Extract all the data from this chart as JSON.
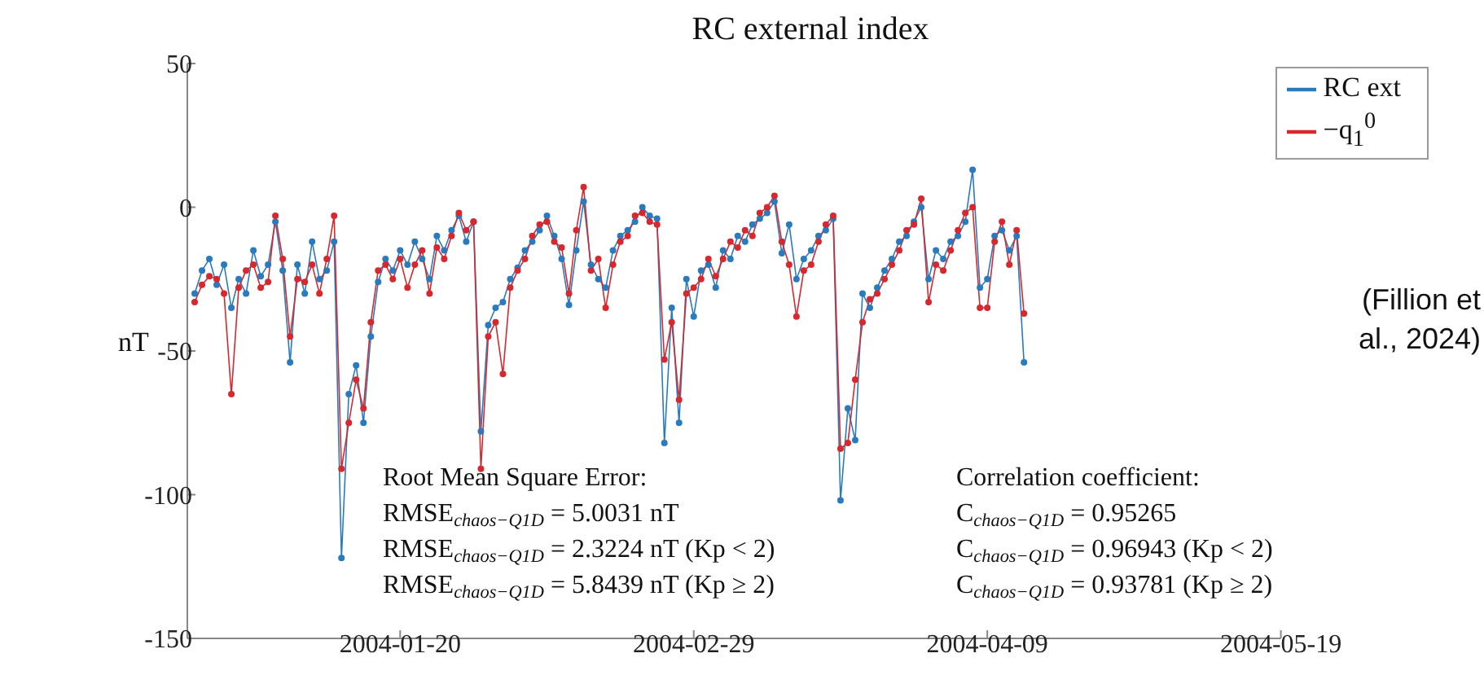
{
  "chart_data": {
    "type": "line",
    "title": "RC external index",
    "ylabel": "nT",
    "x": [
      "2003-12-23",
      "2003-12-24",
      "2003-12-25",
      "2003-12-26",
      "2003-12-27",
      "2003-12-28",
      "2003-12-29",
      "2003-12-30",
      "2003-12-31",
      "2004-01-01",
      "2004-01-02",
      "2004-01-03",
      "2004-01-04",
      "2004-01-05",
      "2004-01-06",
      "2004-01-07",
      "2004-01-08",
      "2004-01-09",
      "2004-01-10",
      "2004-01-11",
      "2004-01-12",
      "2004-01-13",
      "2004-01-14",
      "2004-01-15",
      "2004-01-16",
      "2004-01-17",
      "2004-01-18",
      "2004-01-19",
      "2004-01-20",
      "2004-01-21",
      "2004-01-22",
      "2004-01-23",
      "2004-01-24",
      "2004-01-25",
      "2004-01-26",
      "2004-01-27",
      "2004-01-28",
      "2004-01-29",
      "2004-01-30",
      "2004-01-31",
      "2004-02-01",
      "2004-02-02",
      "2004-02-03",
      "2004-02-04",
      "2004-02-05",
      "2004-02-06",
      "2004-02-07",
      "2004-02-08",
      "2004-02-09",
      "2004-02-10",
      "2004-02-11",
      "2004-02-12",
      "2004-02-13",
      "2004-02-14",
      "2004-02-15",
      "2004-02-16",
      "2004-02-17",
      "2004-02-18",
      "2004-02-19",
      "2004-02-20",
      "2004-02-21",
      "2004-02-22",
      "2004-02-23",
      "2004-02-24",
      "2004-02-25",
      "2004-02-26",
      "2004-02-27",
      "2004-02-28",
      "2004-02-29",
      "2004-03-01",
      "2004-03-02",
      "2004-03-03",
      "2004-03-04",
      "2004-03-05",
      "2004-03-06",
      "2004-03-07",
      "2004-03-08",
      "2004-03-09",
      "2004-03-10",
      "2004-03-11",
      "2004-03-12",
      "2004-03-13",
      "2004-03-14",
      "2004-03-15",
      "2004-03-16",
      "2004-03-17",
      "2004-03-18",
      "2004-03-19",
      "2004-03-20",
      "2004-03-21",
      "2004-03-22",
      "2004-03-23",
      "2004-03-24",
      "2004-03-25",
      "2004-03-26",
      "2004-03-27",
      "2004-03-28",
      "2004-03-29",
      "2004-03-30",
      "2004-03-31",
      "2004-04-01",
      "2004-04-02",
      "2004-04-03",
      "2004-04-04",
      "2004-04-05",
      "2004-04-06",
      "2004-04-07",
      "2004-04-08",
      "2004-04-09",
      "2004-04-10",
      "2004-04-11",
      "2004-04-12",
      "2004-04-13",
      "2004-04-14"
    ],
    "series": [
      {
        "name": "RC ext",
        "color": "#2a7bbd",
        "values": [
          -30,
          -22,
          -18,
          -27,
          -20,
          -35,
          -25,
          -30,
          -15,
          -24,
          -20,
          -5,
          -22,
          -54,
          -20,
          -30,
          -12,
          -25,
          -22,
          -12,
          -122,
          -65,
          -55,
          -75,
          -45,
          -26,
          -18,
          -22,
          -15,
          -20,
          -12,
          -18,
          -25,
          -10,
          -15,
          -8,
          -3,
          -12,
          -5,
          -78,
          -41,
          -35,
          -33,
          -25,
          -21,
          -15,
          -12,
          -8,
          -3,
          -10,
          -18,
          -34,
          -15,
          2,
          -20,
          -25,
          -28,
          -15,
          -10,
          -8,
          -5,
          0,
          -3,
          -4,
          -82,
          -35,
          -75,
          -25,
          -38,
          -22,
          -20,
          -28,
          -15,
          -18,
          -10,
          -12,
          -6,
          -4,
          -2,
          2,
          -16,
          -6,
          -25,
          -18,
          -15,
          -10,
          -8,
          -4,
          -102,
          -70,
          -81,
          -30,
          -35,
          -28,
          -22,
          -18,
          -12,
          -10,
          -5,
          0,
          -25,
          -15,
          -18,
          -12,
          -10,
          -5,
          13,
          -28,
          -25,
          -10,
          -8,
          -15,
          -10,
          -54
        ]
      },
      {
        "name": "−q$_{1}$$^{0}$",
        "color": "#d6282e",
        "values": [
          -33,
          -27,
          -24,
          -25,
          -30,
          -65,
          -28,
          -22,
          -20,
          -28,
          -26,
          -3,
          -18,
          -45,
          -25,
          -26,
          -20,
          -30,
          -18,
          -3,
          -91,
          -75,
          -60,
          -70,
          -40,
          -22,
          -20,
          -25,
          -18,
          -28,
          -20,
          -15,
          -30,
          -14,
          -18,
          -10,
          -2,
          -8,
          -5,
          -91,
          -45,
          -40,
          -58,
          -28,
          -22,
          -18,
          -10,
          -6,
          -5,
          -12,
          -14,
          -30,
          -8,
          7,
          -22,
          -18,
          -35,
          -20,
          -12,
          -10,
          -3,
          -2,
          -5,
          -6,
          -53,
          -40,
          -67,
          -30,
          -28,
          -25,
          -18,
          -24,
          -18,
          -12,
          -14,
          -8,
          -10,
          -2,
          0,
          4,
          -12,
          -20,
          -38,
          -22,
          -20,
          -12,
          -6,
          -3,
          -84,
          -82,
          -60,
          -40,
          -32,
          -30,
          -25,
          -20,
          -15,
          -8,
          -6,
          3,
          -33,
          -20,
          -22,
          -15,
          -8,
          -2,
          0,
          -35,
          -35,
          -12,
          -5,
          -20,
          -8,
          -37
        ]
      }
    ],
    "xlim": [
      "2003-12-22",
      "2004-05-19"
    ],
    "xticks": [
      "2004-01-20",
      "2004-02-29",
      "2004-04-09",
      "2004-05-19"
    ],
    "ylim": [
      -150,
      50
    ],
    "yticks": [
      -150,
      -100,
      -50,
      0,
      50
    ],
    "marker": "circle",
    "legend": "top right",
    "annotations": [
      "Root Mean Square Error:",
      "RMSE$_{chaos−Q1D}$ = 5.0031 nT",
      "RMSE$_{chaos−Q1D}$ = 2.3224 nT (Kp < 2)",
      "RMSE$_{chaos−Q1D}$ = 5.8439 nT (Kp ≥ 2)",
      "Correlation coefficient:",
      "C$_{chaos−Q1D}$ = 0.95265",
      "C$_{chaos−Q1D}$ = 0.96943 (Kp < 2)",
      "C$_{chaos−Q1D}$ = 0.93781 (Kp ≥ 2)",
      "(Fillion et al., 2024)"
    ]
  }
}
